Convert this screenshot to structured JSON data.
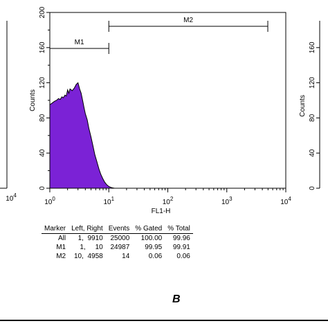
{
  "chart_data": {
    "type": "histogram",
    "title": "",
    "xlabel": "FL1-H",
    "ylabel": "Counts",
    "xscale": "log",
    "xlim": [
      1,
      10000
    ],
    "ylim": [
      0,
      200
    ],
    "x_ticks": [
      {
        "base": "10",
        "exp": "0",
        "value": 1
      },
      {
        "base": "10",
        "exp": "1",
        "value": 10
      },
      {
        "base": "10",
        "exp": "2",
        "value": 100
      },
      {
        "base": "10",
        "exp": "3",
        "value": 1000
      },
      {
        "base": "10",
        "exp": "4",
        "value": 10000
      }
    ],
    "y_ticks": [
      "0",
      "40",
      "80",
      "120",
      "160",
      "200"
    ],
    "fill_color": "#7b22d6",
    "series": [
      {
        "x": [
          1.0,
          1.1,
          1.2,
          1.3,
          1.4,
          1.5,
          1.6,
          1.7,
          1.8,
          1.9,
          2.0,
          2.1,
          2.2,
          2.4,
          2.6,
          2.8,
          3.0,
          3.2,
          3.4,
          3.6,
          3.8,
          4.0,
          4.3,
          4.6,
          5.0,
          5.4,
          5.8,
          6.3,
          6.8,
          7.3,
          7.9,
          8.5,
          9.2,
          10.0,
          10.8,
          11.5,
          12.5
        ],
        "y": [
          95,
          97,
          99,
          100,
          102,
          101,
          104,
          103,
          106,
          105,
          112,
          108,
          113,
          111,
          114,
          118,
          120,
          113,
          108,
          100,
          92,
          85,
          78,
          68,
          58,
          48,
          38,
          30,
          22,
          16,
          11,
          7,
          4,
          2,
          1,
          0.5,
          0
        ]
      }
    ],
    "markers": [
      {
        "label": "M1",
        "from": 1,
        "to": 10
      },
      {
        "label": "M2",
        "from": 10,
        "to": 4958
      }
    ]
  },
  "left_panel": {
    "x_tick": {
      "base": "10",
      "exp": "4"
    }
  },
  "right_panel": {
    "y_ticks": [
      "0",
      "40",
      "80",
      "120",
      "160"
    ],
    "ylabel": "Counts"
  },
  "stats_table": {
    "headers": [
      "Marker",
      "Left, Right",
      "Events",
      "% Gated",
      "% Total"
    ],
    "rows": [
      [
        "All",
        "1,  9910",
        "25000",
        "100.00",
        "99.96"
      ],
      [
        "M1",
        "1,     10",
        "24987",
        "99.95",
        "99.91"
      ],
      [
        "M2",
        "10,  4958",
        "14",
        "0.06",
        "0.06"
      ]
    ]
  },
  "panel_label": "B"
}
